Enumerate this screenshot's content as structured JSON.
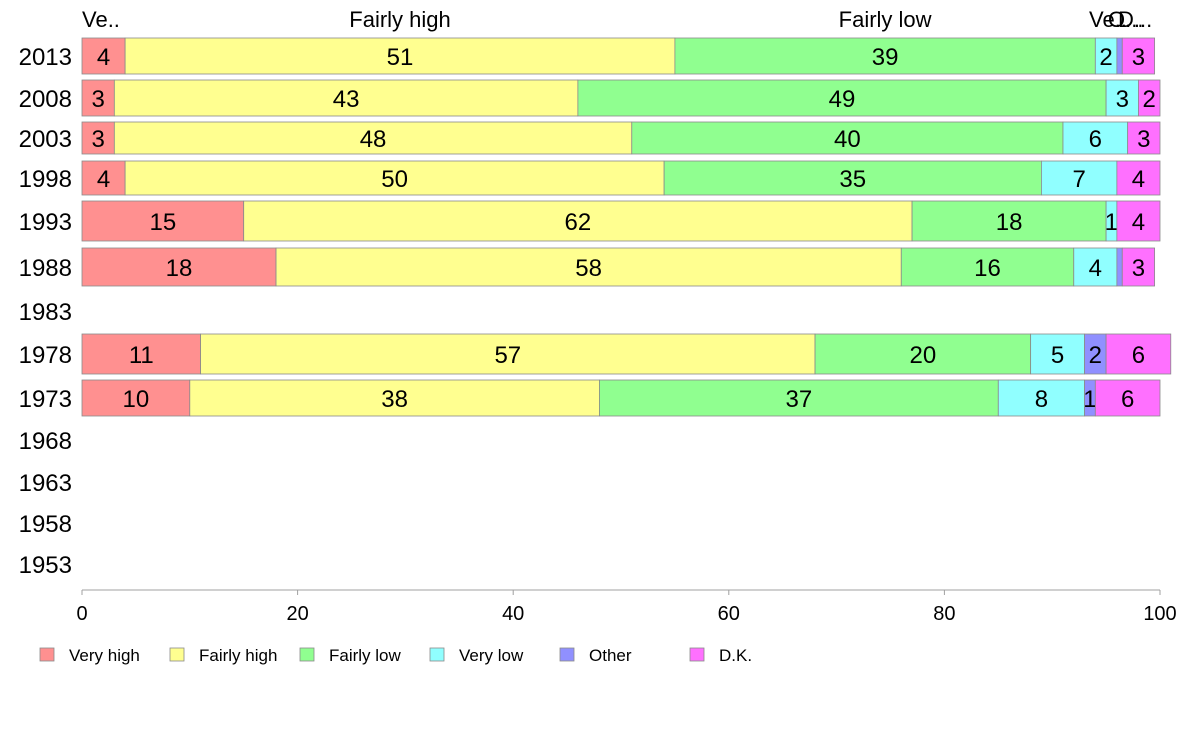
{
  "chart_data": {
    "type": "bar",
    "orientation": "horizontal",
    "stacked": true,
    "xlim": [
      0,
      100
    ],
    "x_ticks": [
      "0",
      "20",
      "40",
      "60",
      "80",
      "100"
    ],
    "categories": [
      "2013",
      "2008",
      "2003",
      "1998",
      "1993",
      "1988",
      "1983",
      "1978",
      "1973",
      "1968",
      "1963",
      "1958",
      "1953"
    ],
    "series": [
      {
        "name": "Very high",
        "color": "#ff9090",
        "values": [
          4,
          3,
          3,
          4,
          15,
          18,
          null,
          11,
          10,
          null,
          null,
          null,
          null
        ]
      },
      {
        "name": "Fairly high",
        "color": "#ffff90",
        "values": [
          51,
          43,
          48,
          50,
          62,
          58,
          null,
          57,
          38,
          null,
          null,
          null,
          null
        ]
      },
      {
        "name": "Fairly low",
        "color": "#90ff90",
        "values": [
          39,
          49,
          40,
          35,
          18,
          16,
          null,
          20,
          37,
          null,
          null,
          null,
          null
        ]
      },
      {
        "name": "Very low",
        "color": "#90ffff",
        "values": [
          2,
          3,
          6,
          7,
          1,
          4,
          null,
          5,
          8,
          null,
          null,
          null,
          null
        ]
      },
      {
        "name": "Other",
        "color": "#9090ff",
        "values": [
          0.5,
          0,
          0,
          0,
          0,
          0.5,
          null,
          2,
          1,
          null,
          null,
          null,
          null
        ]
      },
      {
        "name": "D.K.",
        "color": "#ff70ff",
        "values": [
          3,
          2,
          3,
          4,
          4,
          3,
          null,
          6,
          6,
          null,
          null,
          null,
          null
        ]
      }
    ],
    "segment_labels": [
      [
        "4",
        "51",
        "39",
        "2",
        "",
        "3"
      ],
      [
        "3",
        "43",
        "49",
        "3",
        "",
        "2"
      ],
      [
        "3",
        "48",
        "40",
        "6",
        "",
        "3"
      ],
      [
        "4",
        "50",
        "35",
        "7",
        "",
        "4"
      ],
      [
        "15",
        "62",
        "18",
        "1",
        "",
        "4"
      ],
      [
        "18",
        "58",
        "16",
        "4",
        "",
        "3"
      ],
      [
        "",
        "",
        "",
        "",
        "",
        ""
      ],
      [
        "11",
        "57",
        "20",
        "5",
        "2",
        "6"
      ],
      [
        "10",
        "38",
        "37",
        "8",
        "1",
        "6"
      ],
      [
        "",
        "",
        "",
        "",
        "",
        ""
      ],
      [
        "",
        "",
        "",
        "",
        "",
        ""
      ],
      [
        "",
        "",
        "",
        "",
        "",
        ""
      ],
      [
        "",
        "",
        "",
        "",
        "",
        ""
      ]
    ],
    "top_labels": [
      "Ve..",
      "Fairly high",
      "Fairly low",
      "Ve..",
      "O...",
      "D..."
    ],
    "legend": {
      "position": "bottom",
      "items": [
        "Very high",
        "Fairly high",
        "Fairly low",
        "Very low",
        "Other",
        "D.K."
      ]
    },
    "grid": false
  }
}
